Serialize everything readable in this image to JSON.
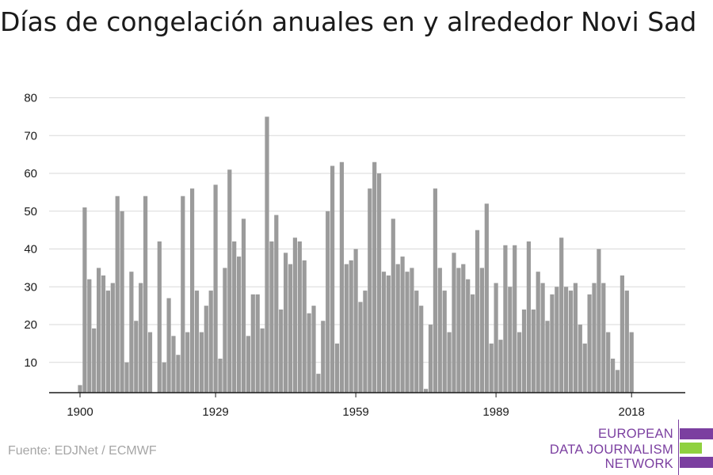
{
  "title": "Días de congelación anuales en y alrededor Novi Sad",
  "source": "Fuente: EDJNet / ECMWF",
  "logo": {
    "lines": [
      "EUROPEAN",
      "DATA JOURNALISM",
      "NETWORK"
    ],
    "colors": {
      "purple": "#7b3fa0",
      "green": "#8fd13f"
    }
  },
  "chart_data": {
    "type": "bar",
    "x_start": 1900,
    "x_end": 2021,
    "categories": [
      1900,
      1901,
      1902,
      1903,
      1904,
      1905,
      1906,
      1907,
      1908,
      1909,
      1910,
      1911,
      1912,
      1913,
      1914,
      1915,
      1916,
      1917,
      1918,
      1919,
      1920,
      1921,
      1922,
      1923,
      1924,
      1925,
      1926,
      1927,
      1928,
      1929,
      1930,
      1931,
      1932,
      1933,
      1934,
      1935,
      1936,
      1937,
      1938,
      1939,
      1940,
      1941,
      1942,
      1943,
      1944,
      1945,
      1946,
      1947,
      1948,
      1949,
      1950,
      1951,
      1952,
      1953,
      1954,
      1955,
      1956,
      1957,
      1958,
      1959,
      1960,
      1961,
      1962,
      1963,
      1964,
      1965,
      1966,
      1967,
      1968,
      1969,
      1970,
      1971,
      1972,
      1973,
      1974,
      1975,
      1976,
      1977,
      1978,
      1979,
      1980,
      1981,
      1982,
      1983,
      1984,
      1985,
      1986,
      1987,
      1988,
      1989,
      1990,
      1991,
      1992,
      1993,
      1994,
      1995,
      1996,
      1997,
      1998,
      1999,
      2000,
      2001,
      2002,
      2003,
      2004,
      2005,
      2006,
      2007,
      2008,
      2009,
      2010,
      2011,
      2012,
      2013,
      2014,
      2015,
      2016,
      2017,
      2018,
      2019,
      2020,
      2021
    ],
    "values": [
      4,
      51,
      32,
      19,
      35,
      33,
      29,
      31,
      54,
      50,
      10,
      34,
      21,
      31,
      54,
      18,
      0,
      42,
      10,
      27,
      17,
      12,
      54,
      18,
      56,
      29,
      18,
      25,
      29,
      57,
      11,
      35,
      61,
      42,
      38,
      48,
      17,
      28,
      28,
      19,
      75,
      42,
      49,
      24,
      39,
      36,
      43,
      42,
      37,
      23,
      25,
      7,
      21,
      50,
      62,
      15,
      63,
      36,
      37,
      40,
      26,
      29,
      56,
      63,
      60,
      34,
      33,
      48,
      36,
      38,
      34,
      35,
      29,
      25,
      3,
      20,
      56,
      35,
      29,
      18,
      39,
      35,
      36,
      32,
      28,
      45,
      35,
      52,
      15,
      31,
      16,
      41,
      30,
      41,
      18,
      24,
      42,
      24,
      34,
      31,
      21,
      28,
      30,
      43,
      30,
      29,
      31,
      20,
      15,
      28,
      31,
      40,
      31,
      18,
      11,
      8,
      33,
      29,
      18,
      0,
      0,
      0
    ],
    "y_ticks": [
      10,
      20,
      30,
      40,
      50,
      60,
      70,
      80
    ],
    "x_ticks": [
      1900,
      1929,
      1959,
      1989,
      2018
    ],
    "ylim": [
      2,
      82
    ],
    "grid": true,
    "bar_color": "#9b9b9b",
    "grid_color": "#d9d9d9",
    "axis_color": "#1a1a1a"
  }
}
